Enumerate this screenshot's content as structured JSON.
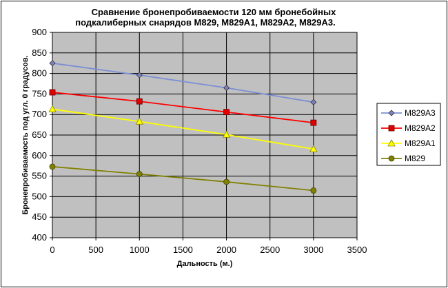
{
  "chart_data": {
    "type": "line",
    "title": [
      "Сравнение бронепробиваемости 120 мм бронебойных",
      "подкалиберных снарядов M829, M829A1, M829A2, M829A3."
    ],
    "xlabel": "Дальность (м.)",
    "ylabel": "Бронепробиваемость под угл. 0 градусов.",
    "xlim": [
      0,
      3500
    ],
    "ylim": [
      400,
      900
    ],
    "x_ticks": [
      0,
      500,
      1000,
      1500,
      2000,
      2500,
      3000,
      3500
    ],
    "y_ticks": [
      400,
      450,
      500,
      550,
      600,
      650,
      700,
      750,
      800,
      850,
      900
    ],
    "grid": "horizontal+vertical",
    "plot_background": "#c0c0c0",
    "legend_position": "right",
    "x": [
      0,
      1000,
      2000,
      3000
    ],
    "series": [
      {
        "name": "M829A3",
        "values": [
          825,
          796,
          765,
          730
        ],
        "color": "#7b8fd6",
        "marker": "diamond",
        "marker_color": "#8080c0"
      },
      {
        "name": "M829A2",
        "values": [
          754,
          732,
          706,
          680
        ],
        "color": "#ff0000",
        "marker": "square",
        "marker_color": "#e00000"
      },
      {
        "name": "M829A1",
        "values": [
          713,
          683,
          651,
          616
        ],
        "color": "#ffff00",
        "marker": "triangle",
        "marker_color": "#ffff00"
      },
      {
        "name": "M829",
        "values": [
          573,
          555,
          536,
          515
        ],
        "color": "#808000",
        "marker": "circle",
        "marker_color": "#808000"
      }
    ]
  }
}
